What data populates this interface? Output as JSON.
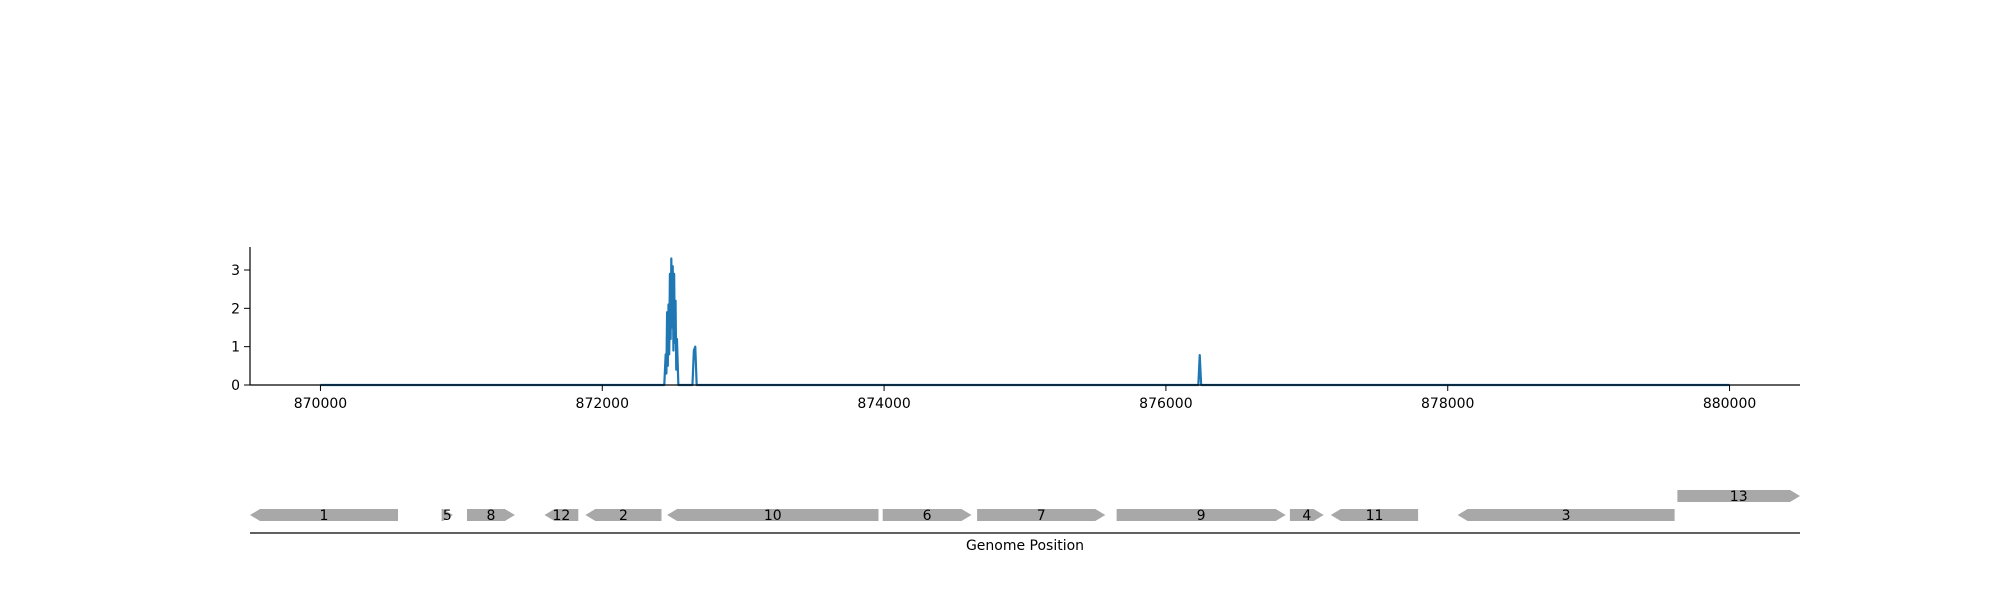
{
  "chart_data": [
    {
      "type": "line",
      "title": "",
      "xlabel": "",
      "ylabel": "",
      "xlim": [
        869500,
        880500
      ],
      "ylim": [
        0,
        3.6
      ],
      "x_ticks": [
        870000,
        872000,
        874000,
        876000,
        878000,
        880000
      ],
      "x_tick_labels": [
        "870000",
        "872000",
        "874000",
        "876000",
        "878000",
        "880000"
      ],
      "y_ticks": [
        0,
        1,
        2,
        3
      ],
      "y_tick_labels": [
        "0",
        "1",
        "2",
        "3"
      ],
      "grid": false,
      "legend": "none",
      "series": [
        {
          "color": "#1f77b4",
          "points": [
            [
              870000,
              0
            ],
            [
              872440,
              0
            ],
            [
              872450,
              0.8
            ],
            [
              872455,
              0.3
            ],
            [
              872460,
              1.9
            ],
            [
              872465,
              0.5
            ],
            [
              872470,
              2.1
            ],
            [
              872475,
              0.8
            ],
            [
              872480,
              2.9
            ],
            [
              872485,
              1.2
            ],
            [
              872490,
              3.3
            ],
            [
              872495,
              1.5
            ],
            [
              872500,
              3.1
            ],
            [
              872505,
              0.9
            ],
            [
              872510,
              2.9
            ],
            [
              872515,
              1.1
            ],
            [
              872520,
              2.2
            ],
            [
              872525,
              0.4
            ],
            [
              872530,
              1.2
            ],
            [
              872540,
              0
            ],
            [
              872640,
              0
            ],
            [
              872650,
              0.9
            ],
            [
              872660,
              1.0
            ],
            [
              872670,
              0
            ],
            [
              876230,
              0
            ],
            [
              876240,
              0.78
            ],
            [
              876250,
              0
            ],
            [
              880000,
              0
            ]
          ]
        }
      ]
    },
    {
      "type": "gene-map",
      "xlabel": "Genome Position",
      "xlim": [
        869500,
        880500
      ],
      "color": "#a8a8a8",
      "genes": [
        {
          "label": "1",
          "start": 869500,
          "end": 870550,
          "strand": "-",
          "row": 0
        },
        {
          "label": "5",
          "start": 870860,
          "end": 870940,
          "strand": "+",
          "row": 0
        },
        {
          "label": "8",
          "start": 871040,
          "end": 871380,
          "strand": "+",
          "row": 0
        },
        {
          "label": "12",
          "start": 871590,
          "end": 871830,
          "strand": "-",
          "row": 0
        },
        {
          "label": "2",
          "start": 871880,
          "end": 872420,
          "strand": "-",
          "row": 0
        },
        {
          "label": "10",
          "start": 872460,
          "end": 873960,
          "strand": "-",
          "row": 0
        },
        {
          "label": "6",
          "start": 873990,
          "end": 874620,
          "strand": "+",
          "row": 0
        },
        {
          "label": "7",
          "start": 874660,
          "end": 875570,
          "strand": "+",
          "row": 0
        },
        {
          "label": "9",
          "start": 875650,
          "end": 876850,
          "strand": "+",
          "row": 0
        },
        {
          "label": "4",
          "start": 876880,
          "end": 877120,
          "strand": "+",
          "row": 0
        },
        {
          "label": "11",
          "start": 877170,
          "end": 877790,
          "strand": "-",
          "row": 0
        },
        {
          "label": "3",
          "start": 878070,
          "end": 879610,
          "strand": "-",
          "row": 0
        },
        {
          "label": "13",
          "start": 879630,
          "end": 880500,
          "strand": "+",
          "row": 1
        }
      ]
    }
  ]
}
